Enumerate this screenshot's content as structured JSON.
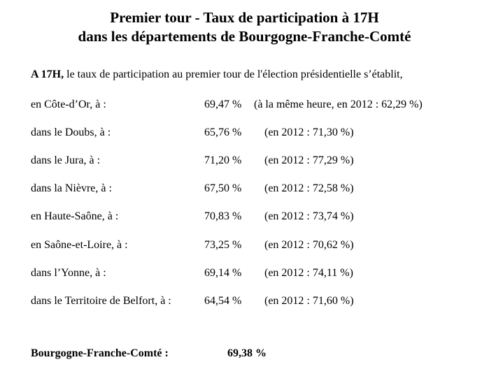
{
  "title": {
    "line1": "Premier tour - Taux de participation à 17H",
    "line2": "dans les départements de Bourgogne-Franche-Comté"
  },
  "intro": {
    "bold": "A 17H,",
    "rest": " le taux de participation au premier tour de l'élection présidentielle s’établit,"
  },
  "rows": [
    {
      "label": "en Côte-d’Or, à :",
      "rate": "69,47 %",
      "comparison": "(à la même heure, en 2012 : 62,29 %)"
    },
    {
      "label": "dans le Doubs, à :",
      "rate": "65,76 %",
      "comparison": "(en 2012 : 71,30 %)"
    },
    {
      "label": "dans le Jura, à :",
      "rate": "71,20 %",
      "comparison": "(en 2012 : 77,29 %)"
    },
    {
      "label": "dans la Nièvre, à :",
      "rate": "67,50 %",
      "comparison": "(en 2012 : 72,58 %)"
    },
    {
      "label": "en Haute-Saône, à :",
      "rate": "70,83 %",
      "comparison": "(en 2012 : 73,74 %)"
    },
    {
      "label": "en Saône-et-Loire, à :",
      "rate": "73,25 %",
      "comparison": "(en 2012 : 70,62 %)"
    },
    {
      "label": "dans l’Yonne, à :",
      "rate": "69,14 %",
      "comparison": "(en 2012 : 74,11 %)"
    },
    {
      "label": "dans le Territoire de Belfort, à :",
      "rate": "64,54 %",
      "comparison": "(en 2012 : 71,60 %)"
    }
  ],
  "total": {
    "label": "Bourgogne-Franche-Comté :",
    "rate": "69,38 %"
  }
}
